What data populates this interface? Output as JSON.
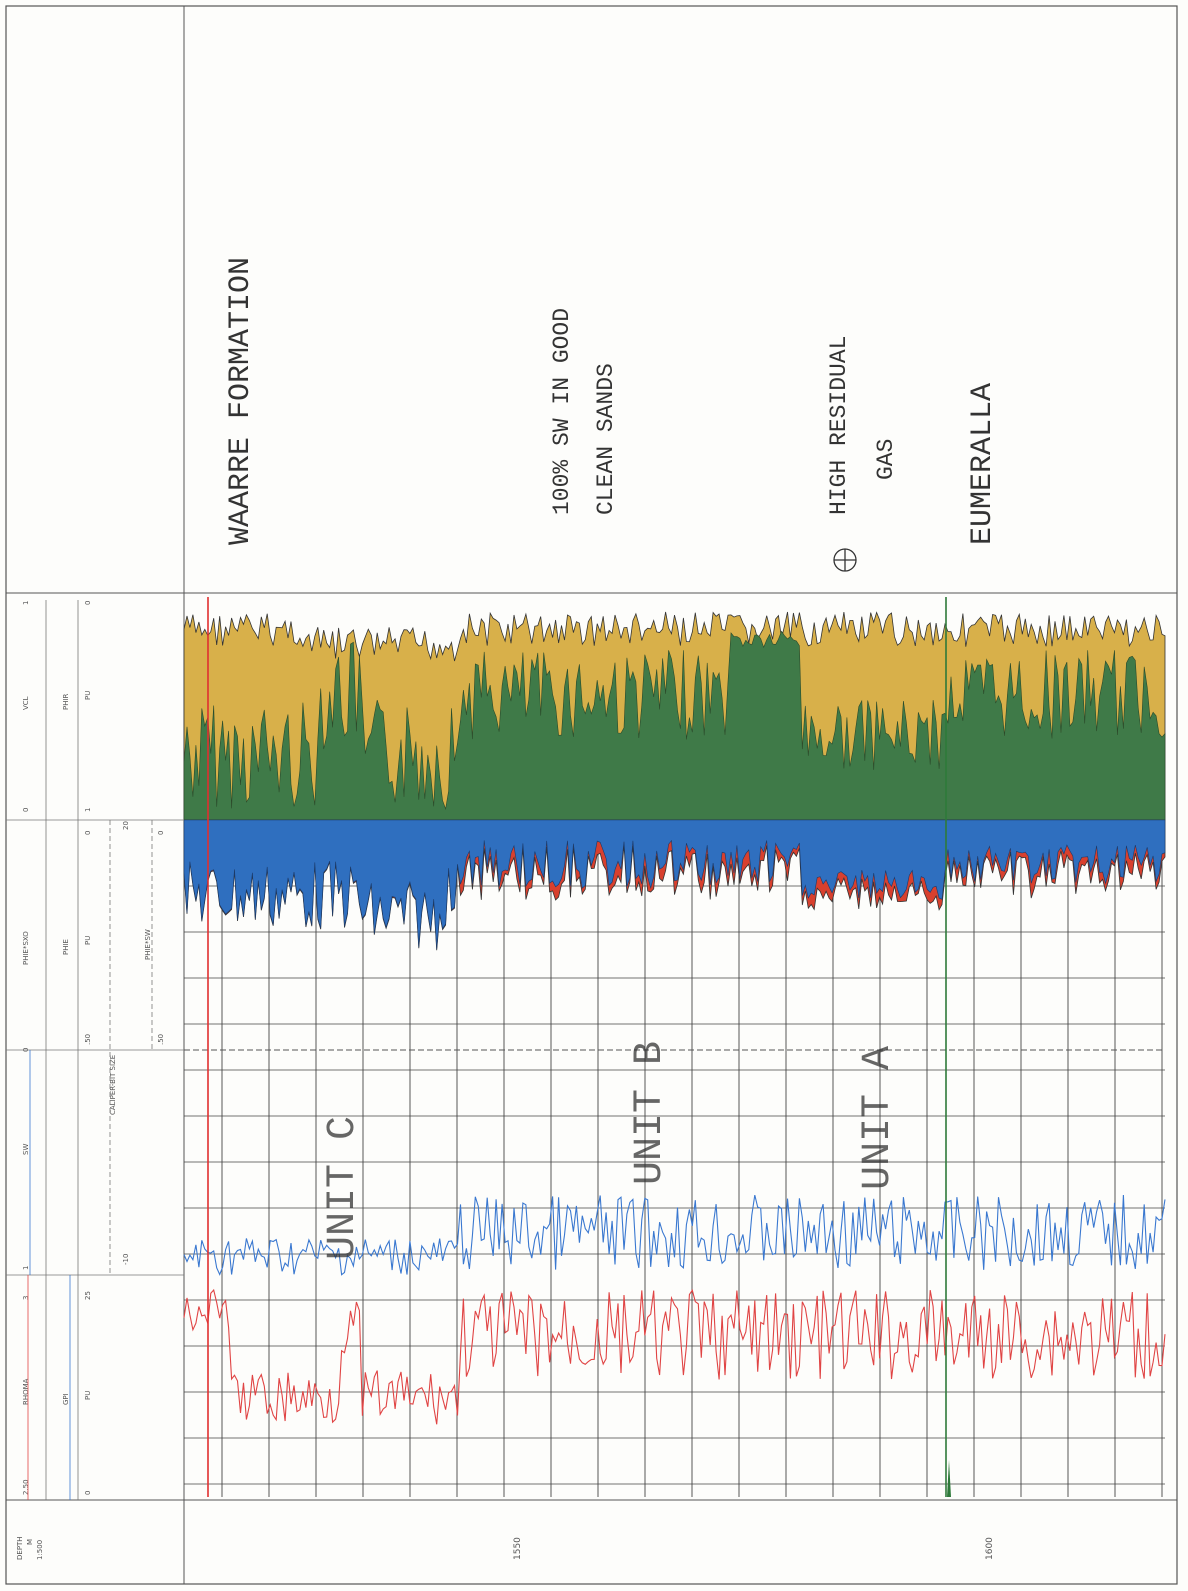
{
  "annotations": {
    "formation": "WAARRE FORMATION",
    "note_line1": "100% SW IN GOOD",
    "note_line2": "CLEAN SANDS",
    "gas_line1": "HIGH RESIDUAL",
    "gas_line2": "GAS",
    "eumeralla": "EUMERALLA",
    "unit_c": "UNIT C",
    "unit_b": "UNIT B",
    "unit_a": "UNIT A"
  },
  "headers": {
    "depth": "DEPTH",
    "depth_unit": "M",
    "depth_scale": "1:500",
    "rhoma": "RHOMA",
    "rhoma_left": "2.50",
    "rhoma_right": "3",
    "gr": "GPI",
    "gr_unit": "PU",
    "gr_left": "0",
    "gr_right": "25",
    "sw": "SW",
    "sw_left": "1",
    "sw_right": "0",
    "caliper": "CALIPER-BIT SIZE",
    "caliper_left": "-10",
    "phie_sxo": "PHIE*SXO",
    "phie": "PHIE",
    "phie_unit": "PU",
    "phie_left": ".50",
    "phie_right": "0",
    "phie_sw": "PHIE*SW",
    "phie_sw_left": ".50",
    "phie_sw_right": "0",
    "caliper_right": "20",
    "vcl": "VCL",
    "vcl_left": "0",
    "vcl_right": "1",
    "phir": "PHIR",
    "phir_unit": "PU",
    "phir_left": "1",
    "phir_right": "0"
  },
  "depth_labels": [
    "1550",
    "1600"
  ],
  "colors": {
    "sand_fill": "#d8b04a",
    "clay_fill": "#3f7a48",
    "water_fill": "#2f6fbf",
    "gas_fill": "#d8402e",
    "rhoma_line": "#e04444",
    "sw_line": "#3a78d0",
    "grid": "#444444"
  },
  "chart_data": {
    "type": "line",
    "depth_range_m": [
      1521,
      1605
    ],
    "zones": [
      {
        "name": "UNIT C",
        "top_m": 1523,
        "base_m": 1544
      },
      {
        "name": "UNIT B",
        "top_m": 1544,
        "base_m": 1579
      },
      {
        "name": "UNIT A",
        "top_m": 1579,
        "base_m": 1598
      },
      {
        "name": "EUMERALLA",
        "top_m": 1598,
        "base_m": 1605
      }
    ],
    "tracks": [
      {
        "name": "RHOMA",
        "range": [
          2.5,
          3
        ]
      },
      {
        "name": "SW",
        "range": [
          1,
          0
        ]
      },
      {
        "name": "PHIE*SXO / PHIE*SW",
        "range": [
          0.5,
          0
        ]
      },
      {
        "name": "VCL",
        "range": [
          0,
          1
        ]
      }
    ]
  }
}
